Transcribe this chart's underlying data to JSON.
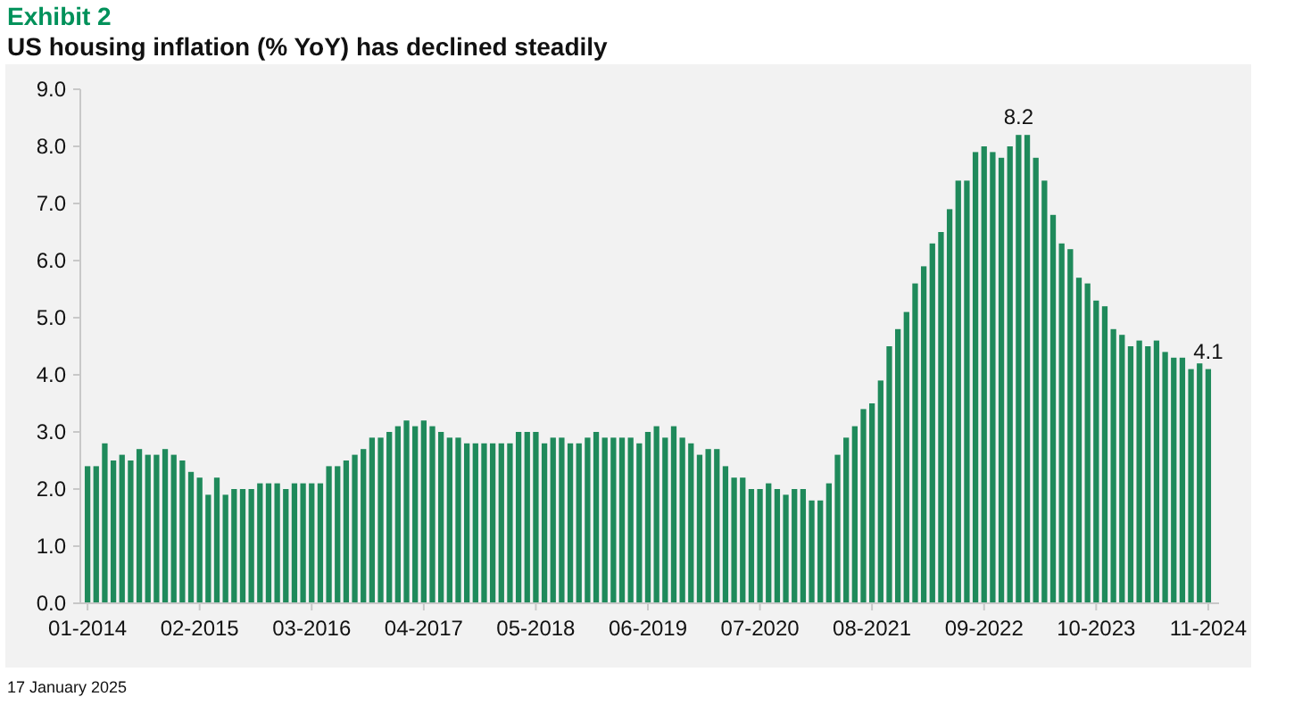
{
  "chart_data": {
    "type": "bar",
    "subtitle": "Exhibit 2",
    "title": "US housing inflation (% YoY) has declined steadily",
    "categories": [
      "01-2014",
      null,
      null,
      null,
      null,
      null,
      null,
      null,
      null,
      null,
      null,
      null,
      null,
      "02-2015",
      null,
      null,
      null,
      null,
      null,
      null,
      null,
      null,
      null,
      null,
      null,
      null,
      "03-2016",
      null,
      null,
      null,
      null,
      null,
      null,
      null,
      null,
      null,
      null,
      null,
      null,
      "04-2017",
      null,
      null,
      null,
      null,
      null,
      null,
      null,
      null,
      null,
      null,
      null,
      null,
      "05-2018",
      null,
      null,
      null,
      null,
      null,
      null,
      null,
      null,
      null,
      null,
      null,
      null,
      "06-2019",
      null,
      null,
      null,
      null,
      null,
      null,
      null,
      null,
      null,
      null,
      null,
      null,
      "07-2020",
      null,
      null,
      null,
      null,
      null,
      null,
      null,
      null,
      null,
      null,
      null,
      null,
      "08-2021",
      null,
      null,
      null,
      null,
      null,
      null,
      null,
      null,
      null,
      null,
      null,
      null,
      "09-2022",
      null,
      null,
      null,
      null,
      null,
      null,
      null,
      null,
      null,
      null,
      null,
      null,
      "10-2023",
      null,
      null,
      null,
      null,
      null,
      null,
      null,
      null,
      null,
      null,
      null,
      null,
      "11-2024"
    ],
    "values": [
      2.4,
      2.4,
      2.8,
      2.5,
      2.6,
      2.5,
      2.7,
      2.6,
      2.6,
      2.7,
      2.6,
      2.5,
      2.3,
      2.2,
      1.9,
      2.2,
      1.9,
      2.0,
      2.0,
      2.0,
      2.1,
      2.1,
      2.1,
      2.0,
      2.1,
      2.1,
      2.1,
      2.1,
      2.4,
      2.4,
      2.5,
      2.6,
      2.7,
      2.9,
      2.9,
      3.0,
      3.1,
      3.2,
      3.1,
      3.2,
      3.1,
      3.0,
      2.9,
      2.9,
      2.8,
      2.8,
      2.8,
      2.8,
      2.8,
      2.8,
      3.0,
      3.0,
      3.0,
      2.8,
      2.9,
      2.9,
      2.8,
      2.8,
      2.9,
      3.0,
      2.9,
      2.9,
      2.9,
      2.9,
      2.8,
      3.0,
      3.1,
      2.9,
      3.1,
      2.9,
      2.8,
      2.6,
      2.7,
      2.7,
      2.4,
      2.2,
      2.2,
      2.0,
      2.0,
      2.1,
      2.0,
      1.9,
      2.0,
      2.0,
      1.8,
      1.8,
      2.1,
      2.6,
      2.9,
      3.1,
      3.4,
      3.5,
      3.9,
      4.5,
      4.8,
      5.1,
      5.6,
      5.9,
      6.3,
      6.5,
      6.9,
      7.4,
      7.4,
      7.9,
      8.0,
      7.9,
      7.8,
      8.0,
      8.2,
      8.2,
      7.8,
      7.4,
      6.8,
      6.3,
      6.2,
      5.7,
      5.6,
      5.3,
      5.2,
      4.8,
      4.7,
      4.5,
      4.6,
      4.5,
      4.6,
      4.4,
      4.3,
      4.3,
      4.1,
      4.2,
      4.1
    ],
    "value_labels": [
      null,
      null,
      null,
      null,
      null,
      null,
      null,
      null,
      null,
      null,
      null,
      null,
      null,
      null,
      null,
      null,
      null,
      null,
      null,
      null,
      null,
      null,
      null,
      null,
      null,
      null,
      null,
      null,
      null,
      null,
      null,
      null,
      null,
      null,
      null,
      null,
      null,
      null,
      null,
      null,
      null,
      null,
      null,
      null,
      null,
      null,
      null,
      null,
      null,
      null,
      null,
      null,
      null,
      null,
      null,
      null,
      null,
      null,
      null,
      null,
      null,
      null,
      null,
      null,
      null,
      null,
      null,
      null,
      null,
      null,
      null,
      null,
      null,
      null,
      null,
      null,
      null,
      null,
      null,
      null,
      null,
      null,
      null,
      null,
      null,
      null,
      null,
      null,
      null,
      null,
      null,
      null,
      null,
      null,
      null,
      null,
      null,
      null,
      null,
      null,
      null,
      null,
      null,
      null,
      null,
      null,
      null,
      null,
      "8.2",
      null,
      null,
      null,
      null,
      null,
      null,
      null,
      null,
      null,
      null,
      null,
      null,
      null,
      null,
      null,
      null,
      null,
      null,
      null,
      null,
      null,
      "4.1"
    ],
    "color": "#1f8a5b",
    "ylim": [
      0,
      9
    ],
    "yticks": [
      {
        "value": 0,
        "label": "0.0"
      },
      {
        "value": 1,
        "label": "1.0"
      },
      {
        "value": 2,
        "label": "2.0"
      },
      {
        "value": 3,
        "label": "3.0"
      },
      {
        "value": 4,
        "label": "4.0"
      },
      {
        "value": 5,
        "label": "5.0"
      },
      {
        "value": 6,
        "label": "6.0"
      },
      {
        "value": 7,
        "label": "7.0"
      },
      {
        "value": 8,
        "label": "8.0"
      },
      {
        "value": 9,
        "label": "9.0"
      }
    ],
    "grid": false,
    "annotations": [
      "17 January 2025"
    ]
  }
}
